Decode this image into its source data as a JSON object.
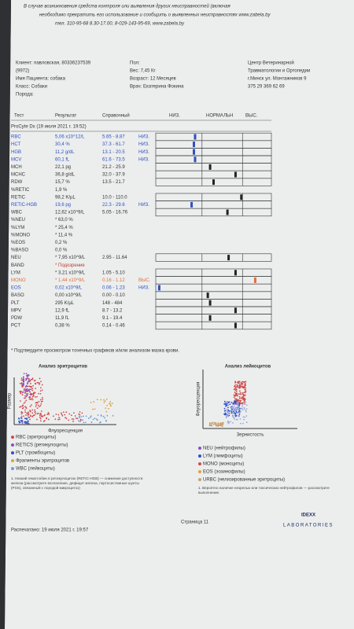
{
  "notice": [
    "В случае возникновения средств контроля или выявления других неисправностей (включая",
    "необходимо прекратить его использование и сообщить о выявленных неисправностях www.zabela.by",
    "тел. 310-95-68 8.30-17.00, 8-029-143-95-69, www.zabela.by"
  ],
  "client": {
    "left": [
      "Клиент: павловская, 80336237539",
      "(9972)",
      "Имя Пациента: собака",
      "Класс: Собаки",
      "Порода:"
    ],
    "middle": [
      "Пол:",
      "Вес: 7,45 Кг",
      "Возраст: 12 Месяцев",
      "Врач: Екатерина Фокина"
    ],
    "clinic": [
      "Центр Ветеринарной",
      "Травматологии и Ортопедии",
      "г.Минск ул. Монтажников 9",
      "375 29 369 62 69"
    ]
  },
  "table": {
    "headers": [
      "Тест",
      "Результат",
      "Справочный",
      "НИЗ.",
      "НОРМАЛЬН",
      "ВЫС."
    ],
    "instrument": "ProCyte Dx (19 июля 2021 г. 19:52)",
    "rows": [
      {
        "test": "RBC",
        "result": "5,06 x10^12/L",
        "ref": "5.65 - 8.87",
        "flag": "НИЗ.",
        "marker": 34,
        "marker_color": "#2f4fc0"
      },
      {
        "test": "HCT",
        "result": "30,4 %",
        "ref": "37.3 - 61.7",
        "flag": "НИЗ.",
        "marker": 33,
        "marker_color": "#2f4fc0"
      },
      {
        "test": "HGB",
        "result": "11,2 g/dL",
        "ref": "13.1 - 20.5",
        "flag": "НИЗ.",
        "marker": 33,
        "marker_color": "#2f4fc0"
      },
      {
        "test": "MCV",
        "result": "60,1 fL",
        "ref": "61.6 - 73.5",
        "flag": "НИЗ.",
        "marker": 34,
        "marker_color": "#2f4fc0"
      },
      {
        "test": "MCH",
        "result": "22,1 pg",
        "ref": "21.2 - 25.9",
        "marker": 47,
        "marker_color": "#222"
      },
      {
        "test": "MCHC",
        "result": "36,8 g/dL",
        "ref": "32.0 - 37.9",
        "marker": 69,
        "marker_color": "#222"
      },
      {
        "test": "RDW",
        "result": "15,7 %",
        "ref": "13.5 - 21.7",
        "marker": 50,
        "marker_color": "#222"
      },
      {
        "test": "%RETIC",
        "result": "1,9 %"
      },
      {
        "test": "RETIC",
        "result": "98,2 K/µL",
        "ref": "10.0 - 110.0",
        "marker": 74,
        "marker_color": "#222"
      },
      {
        "test": "RETIC-HGB",
        "result": "19,6 pg",
        "ref": "22.3 - 29.6",
        "flag": "НИЗ.",
        "marker": 31,
        "marker_color": "#2f4fc0"
      },
      {
        "test": "WBC",
        "result": "12,62 x10^9/L",
        "ref": "5.05 - 16.76",
        "marker": 62,
        "marker_color": "#222"
      },
      {
        "test": "%NEU",
        "result": "* 63,0 %"
      },
      {
        "test": "%LYM",
        "result": "* 25,4 %"
      },
      {
        "test": "%MONO",
        "result": "* 11,4 %"
      },
      {
        "test": "%EOS",
        "result": "0,2 %"
      },
      {
        "test": "%BASO",
        "result": "0,0 %"
      },
      {
        "test": "NEU",
        "result": "* 7,95 x10^9/L",
        "ref": "2.95 - 11.64",
        "marker": 63,
        "marker_color": "#222"
      },
      {
        "test": "BAND",
        "result": "* Подозрение",
        "marker_color": "#c0392b"
      },
      {
        "test": "LYM",
        "result": "* 3,21 x10^9/L",
        "ref": "1.05 - 5.10",
        "marker": 69,
        "marker_color": "#222"
      },
      {
        "test": "MONO",
        "result": "* 1,44 x10^9/L",
        "ref": "0.16 - 1.12",
        "flag": "ВЫС.",
        "marker": 86,
        "marker_color": "#e0703a"
      },
      {
        "test": "EOS",
        "result": "0,02 x10^9/L",
        "ref": "0.06 - 1.23",
        "flag": "НИЗ.",
        "marker": 3,
        "marker_color": "#2f4fc0"
      },
      {
        "test": "BASO",
        "result": "0,00 x10^9/L",
        "ref": "0.00 - 0.10",
        "marker": 45,
        "marker_color": "#222"
      },
      {
        "test": "PLT",
        "result": "295 K/µL",
        "ref": "148 - 484",
        "marker": 47,
        "marker_color": "#222"
      },
      {
        "test": "MPV",
        "result": "12,9 fL",
        "ref": "8.7 - 13.2",
        "marker": 69,
        "marker_color": "#222"
      },
      {
        "test": "PDW",
        "result": "11,9 fL",
        "ref": "9.1 - 19.4",
        "marker": 47,
        "marker_color": "#222"
      },
      {
        "test": "PCT",
        "result": "0,38 %",
        "ref": "0.14 - 0.46",
        "marker": 69,
        "marker_color": "#222"
      }
    ],
    "note": "* Подтвердите просмотром точечных графиков и/или анализом мазка крови."
  },
  "charts": [
    {
      "title": "Анализ эритроцитов",
      "y_label": "Размер",
      "x_label": "Флуоресценция",
      "legend": [
        {
          "label": "RBC (эритроциты)",
          "color": "#d24a4a"
        },
        {
          "label": "RETICS (ретикулоциты)",
          "color": "#8a4fc0"
        },
        {
          "label": "PLT (тромбоциты)",
          "color": "#2f4fc0"
        },
        {
          "label": "Фрагменты эритроцитов",
          "color": "#e0a040"
        },
        {
          "label": "WBC (лейкоциты)",
          "color": "#6a9fd8"
        }
      ],
      "footnote": "1. Низкий гемоглобин в ретикулоцитах (RETIC-HGB) — снижение доступности железа (рассмотрите воспаление, дефицит железа, портосистемные шунты (PSS), связанный с породой микроцитоз)"
    },
    {
      "title": "Анализ лейкоцитов",
      "y_label": "Флуоресценция",
      "x_label": "Зернистость",
      "legend": [
        {
          "label": "NEU (нейтрофилы)",
          "color": "#8a4fc0"
        },
        {
          "label": "LYM (лимфоциты)",
          "color": "#2f4fc0"
        },
        {
          "label": "MONO (моноциты)",
          "color": "#d24a4a"
        },
        {
          "label": "EOS (эозинофилы)",
          "color": "#e0a040"
        },
        {
          "label": "URBC (нелизированные эритроциты)",
          "color": "#c8a070"
        }
      ],
      "footnote": "1. Вероятно наличие незрелых или токсических нейтрофилов — рассмотрите выполнение."
    }
  ],
  "footer": {
    "printed": "Распечатано: 19 июля 2021 г. 19:57",
    "page": "Страница 11",
    "logo": "IDEXX",
    "logo_sub": "LABORATORIES"
  }
}
